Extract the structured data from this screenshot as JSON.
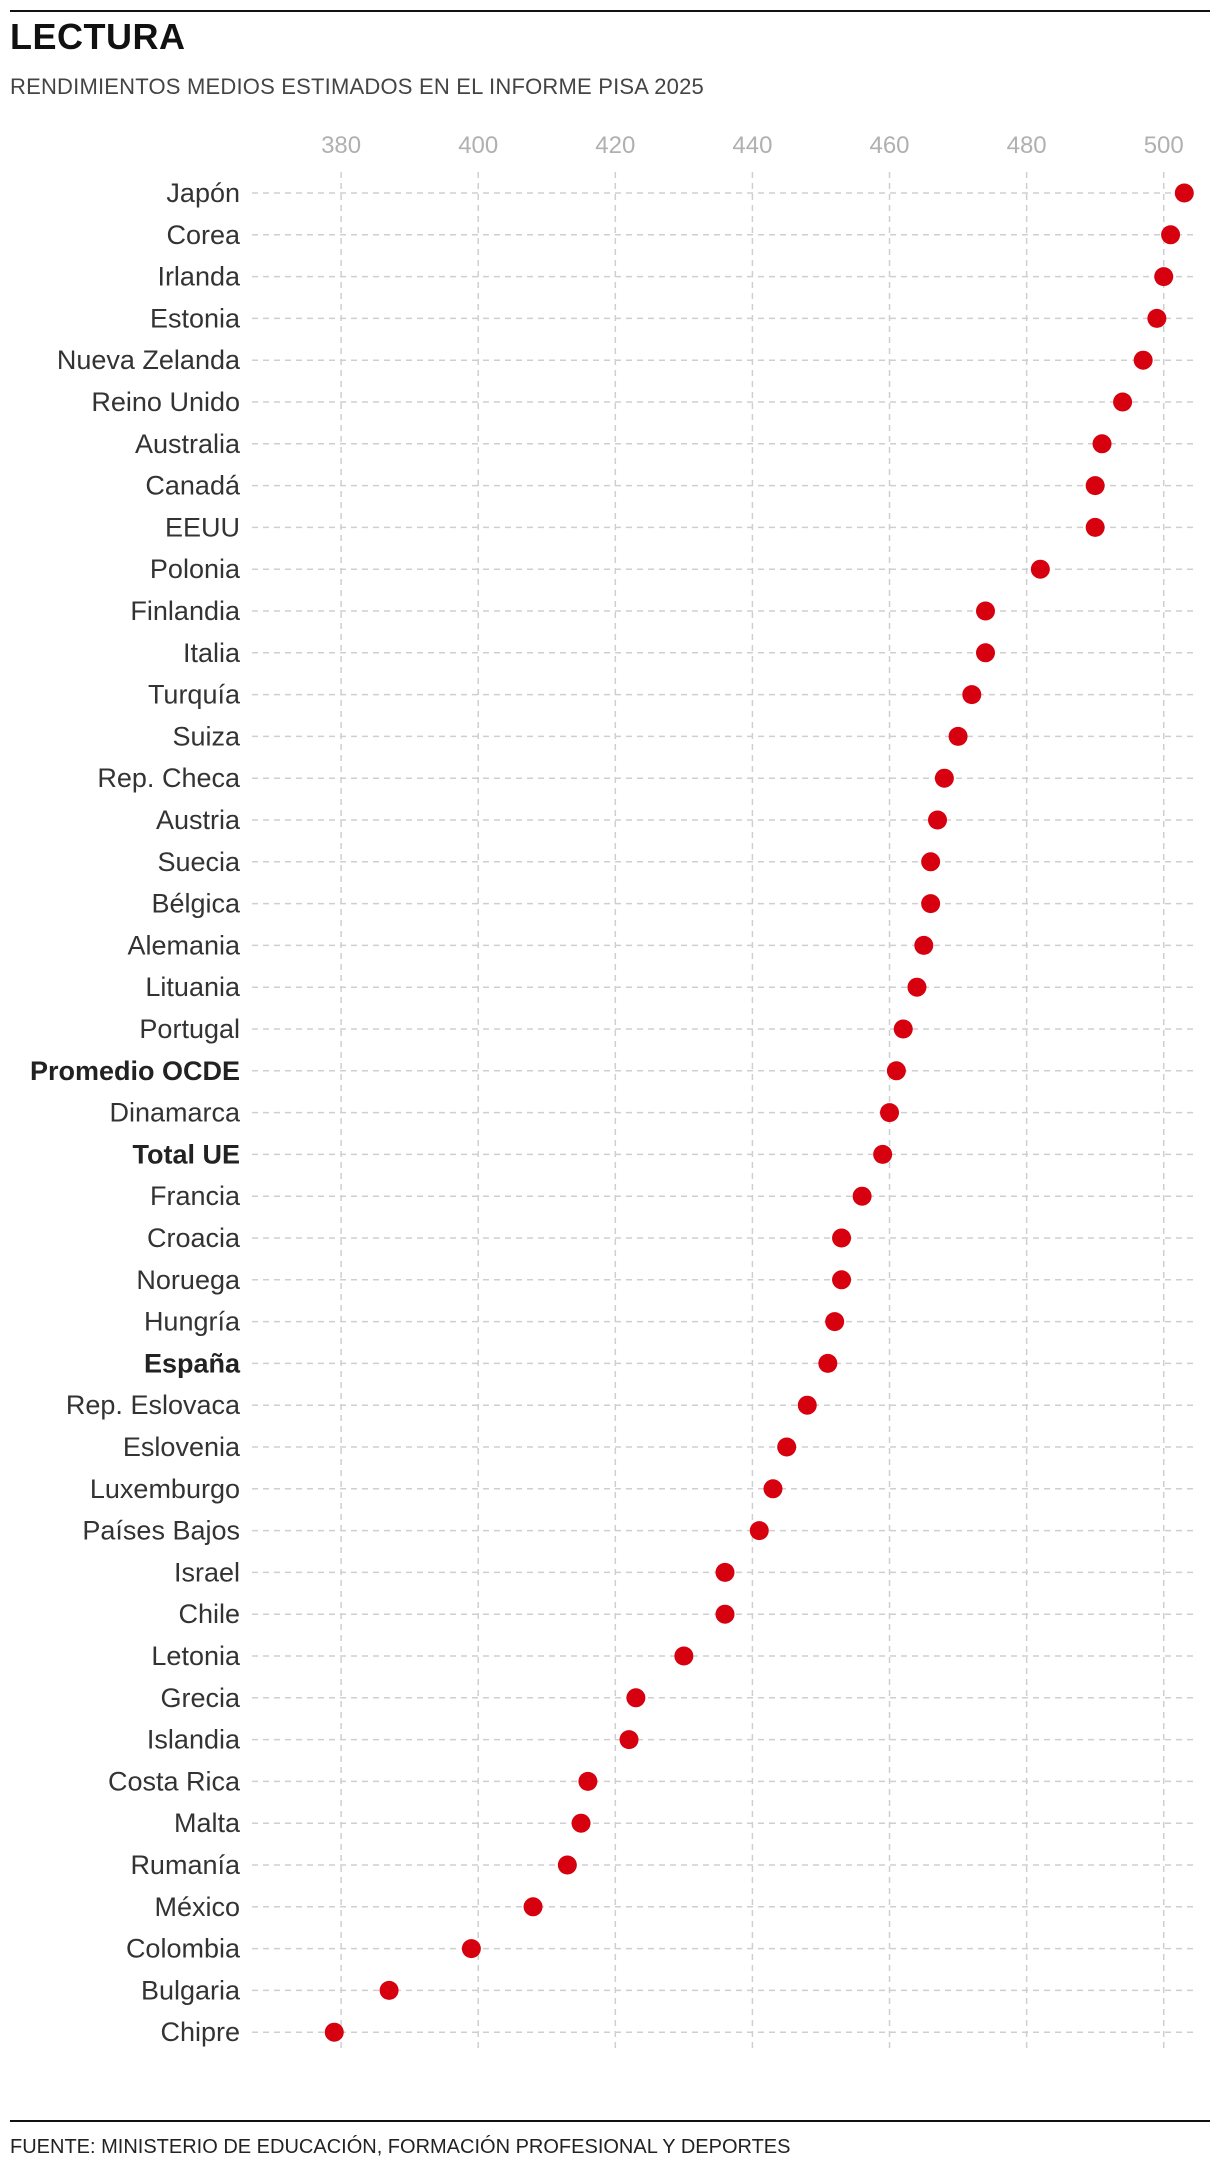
{
  "title": "LECTURA",
  "subtitle": "RENDIMIENTOS MEDIOS ESTIMADOS EN EL INFORME PISA 2025",
  "source": "FUENTE: MINISTERIO DE EDUCACIÓN, FORMACIÓN PROFESIONAL Y DEPORTES",
  "colors": {
    "dot": "#d7000f",
    "grid": "#cfcfcf",
    "tick": "#b0b0b0"
  },
  "chart_data": {
    "type": "scatter",
    "title": "LECTURA",
    "subtitle": "RENDIMIENTOS MEDIOS ESTIMADOS EN EL INFORME PISA 2025",
    "xlabel": "",
    "ylabel": "",
    "xlim": [
      367,
      505
    ],
    "xticks": [
      380,
      400,
      420,
      440,
      460,
      480,
      500
    ],
    "grid": true,
    "legend": "none",
    "highlighted": [
      "Promedio OCDE",
      "Total UE",
      "España"
    ],
    "categories": [
      "Japón",
      "Corea",
      "Irlanda",
      "Estonia",
      "Nueva Zelanda",
      "Reino Unido",
      "Australia",
      "Canadá",
      "EEUU",
      "Polonia",
      "Finlandia",
      "Italia",
      "Turquía",
      "Suiza",
      "Rep. Checa",
      "Austria",
      "Suecia",
      "Bélgica",
      "Alemania",
      "Lituania",
      "Portugal",
      "Promedio OCDE",
      "Dinamarca",
      "Total UE",
      "Francia",
      "Croacia",
      "Noruega",
      "Hungría",
      "España",
      "Rep. Eslovaca",
      "Eslovenia",
      "Luxemburgo",
      "Países Bajos",
      "Israel",
      "Chile",
      "Letonia",
      "Grecia",
      "Islandia",
      "Costa Rica",
      "Malta",
      "Rumanía",
      "México",
      "Colombia",
      "Bulgaria",
      "Chipre"
    ],
    "values": [
      503,
      501,
      500,
      499,
      497,
      494,
      491,
      490,
      490,
      482,
      474,
      474,
      472,
      470,
      468,
      467,
      466,
      466,
      465,
      464,
      462,
      461,
      460,
      459,
      456,
      453,
      453,
      452,
      451,
      448,
      445,
      443,
      441,
      436,
      436,
      430,
      423,
      422,
      416,
      415,
      413,
      408,
      399,
      387,
      379
    ]
  }
}
